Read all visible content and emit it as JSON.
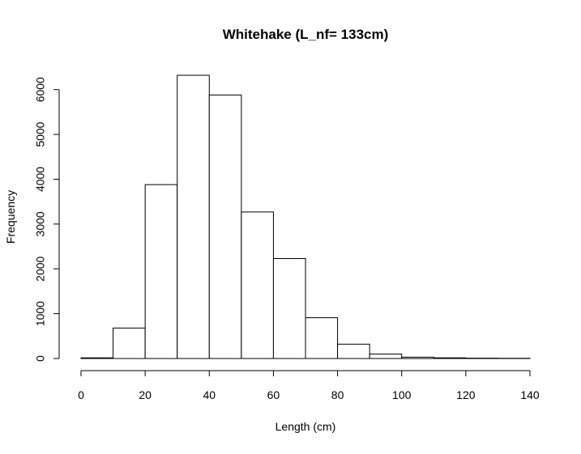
{
  "chart_data": {
    "type": "bar",
    "title": "Whitehake (L_nf= 133cm)",
    "xlabel": "Length (cm)",
    "ylabel": "Frequency",
    "bins": [
      [
        0,
        10
      ],
      [
        10,
        20
      ],
      [
        20,
        30
      ],
      [
        30,
        40
      ],
      [
        40,
        50
      ],
      [
        50,
        60
      ],
      [
        60,
        70
      ],
      [
        70,
        80
      ],
      [
        80,
        90
      ],
      [
        90,
        100
      ],
      [
        100,
        110
      ],
      [
        110,
        120
      ],
      [
        120,
        130
      ],
      [
        130,
        140
      ]
    ],
    "values": [
      15,
      680,
      3880,
      6320,
      5880,
      3270,
      2230,
      910,
      320,
      100,
      30,
      15,
      8,
      5
    ],
    "xlim": [
      0,
      140
    ],
    "ylim": [
      0,
      6320
    ],
    "xticks": [
      0,
      20,
      40,
      60,
      80,
      100,
      120,
      140
    ],
    "yticks": [
      0,
      1000,
      2000,
      3000,
      4000,
      5000,
      6000
    ],
    "grid": false,
    "legend": "none"
  }
}
